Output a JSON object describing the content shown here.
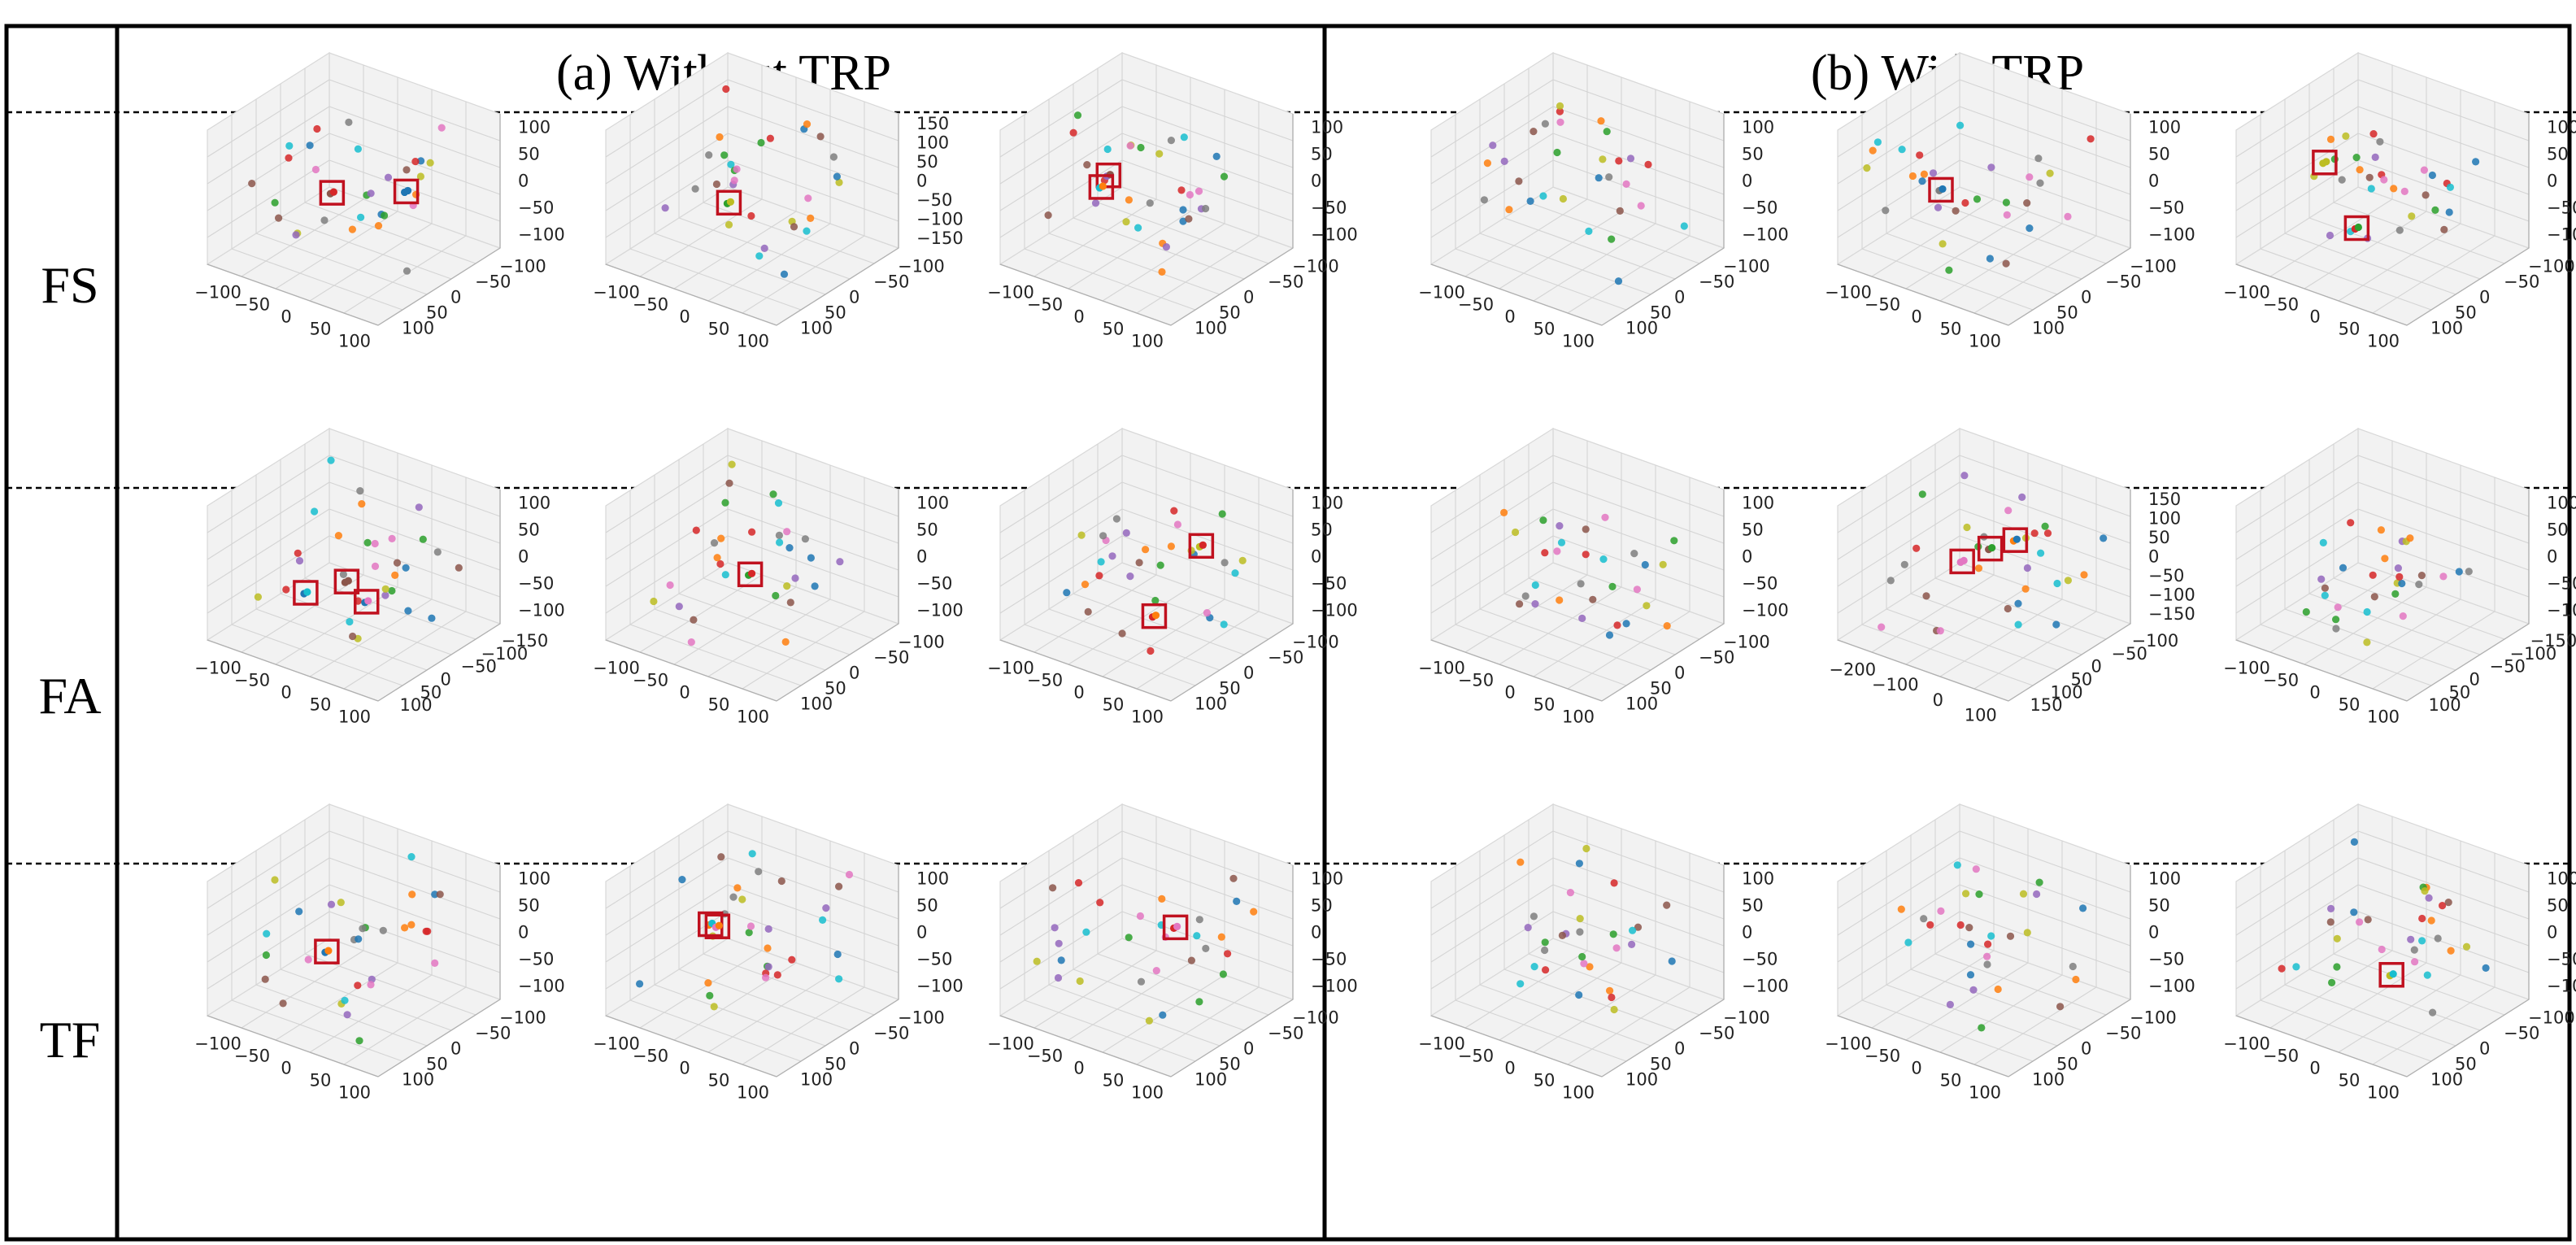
{
  "headers": {
    "left": "(a) Without TRP",
    "right": "(b) With TRP"
  },
  "rows": [
    "FS",
    "FA",
    "TF"
  ],
  "palette": [
    "#1f77b4",
    "#ff7f0e",
    "#2ca02c",
    "#d62728",
    "#9467bd",
    "#8c564b",
    "#e377c2",
    "#7f7f7f",
    "#bcbd22",
    "#17becf"
  ],
  "box_color": "#c0111f",
  "chart_data": {
    "type": "scatter",
    "projection": "3d",
    "grid": true,
    "panels": [
      {
        "row": "FS",
        "group": "(a) Without TRP",
        "x_ticks": [
          "−100",
          "−50",
          "0",
          "50",
          "100"
        ],
        "y_ticks": [
          "−100",
          "−50",
          "0",
          "50",
          "100"
        ],
        "z_ticks": [
          "100",
          "50",
          "0",
          "−50",
          "−100"
        ],
        "highlighted_clusters": 2
      },
      {
        "row": "FS",
        "group": "(a) Without TRP",
        "x_ticks": [
          "−100",
          "−50",
          "0",
          "50",
          "100"
        ],
        "y_ticks": [
          "−100",
          "−50",
          "0",
          "50",
          "100"
        ],
        "z_ticks": [
          "150",
          "100",
          "50",
          "0",
          "−50",
          "−100",
          "−150"
        ],
        "highlighted_clusters": 1
      },
      {
        "row": "FS",
        "group": "(a) Without TRP",
        "x_ticks": [
          "−100",
          "−50",
          "0",
          "50",
          "100"
        ],
        "y_ticks": [
          "−100",
          "−50",
          "0",
          "50",
          "100"
        ],
        "z_ticks": [
          "100",
          "50",
          "0",
          "−50",
          "−100"
        ],
        "highlighted_clusters": 2
      },
      {
        "row": "FS",
        "group": "(b) With TRP",
        "x_ticks": [
          "−100",
          "−50",
          "0",
          "50",
          "100"
        ],
        "y_ticks": [
          "−100",
          "−50",
          "0",
          "50",
          "100"
        ],
        "z_ticks": [
          "100",
          "50",
          "0",
          "−50",
          "−100"
        ],
        "highlighted_clusters": 0
      },
      {
        "row": "FS",
        "group": "(b) With TRP",
        "x_ticks": [
          "−100",
          "−50",
          "0",
          "50",
          "100"
        ],
        "y_ticks": [
          "−100",
          "−50",
          "0",
          "50",
          "100"
        ],
        "z_ticks": [
          "100",
          "50",
          "0",
          "−50",
          "−100"
        ],
        "highlighted_clusters": 1
      },
      {
        "row": "FS",
        "group": "(b) With TRP",
        "x_ticks": [
          "−100",
          "−50",
          "0",
          "50",
          "100"
        ],
        "y_ticks": [
          "−100",
          "−50",
          "0",
          "50",
          "100"
        ],
        "z_ticks": [
          "100",
          "50",
          "0",
          "−50",
          "−100"
        ],
        "highlighted_clusters": 2
      },
      {
        "row": "FA",
        "group": "(a) Without TRP",
        "x_ticks": [
          "−100",
          "−50",
          "0",
          "50",
          "100"
        ],
        "y_ticks": [
          "−150",
          "−100",
          "−50",
          "0",
          "50",
          "100"
        ],
        "z_ticks": [
          "100",
          "50",
          "0",
          "−50",
          "−100"
        ],
        "highlighted_clusters": 3
      },
      {
        "row": "FA",
        "group": "(a) Without TRP",
        "x_ticks": [
          "−100",
          "−50",
          "0",
          "50",
          "100"
        ],
        "y_ticks": [
          "−100",
          "−50",
          "0",
          "50",
          "100"
        ],
        "z_ticks": [
          "100",
          "50",
          "0",
          "−50",
          "−100"
        ],
        "highlighted_clusters": 1
      },
      {
        "row": "FA",
        "group": "(a) Without TRP",
        "x_ticks": [
          "−100",
          "−50",
          "0",
          "50",
          "100"
        ],
        "y_ticks": [
          "−100",
          "−50",
          "0",
          "50",
          "100"
        ],
        "z_ticks": [
          "100",
          "50",
          "0",
          "−50",
          "−100"
        ],
        "highlighted_clusters": 2
      },
      {
        "row": "FA",
        "group": "(b) With TRP",
        "x_ticks": [
          "−100",
          "−50",
          "0",
          "50",
          "100"
        ],
        "y_ticks": [
          "−100",
          "−50",
          "0",
          "50",
          "100"
        ],
        "z_ticks": [
          "100",
          "50",
          "0",
          "−50",
          "−100"
        ],
        "highlighted_clusters": 0
      },
      {
        "row": "FA",
        "group": "(b) With TRP",
        "x_ticks": [
          "−200",
          "−100",
          "0",
          "100"
        ],
        "y_ticks": [
          "−100",
          "−50",
          "0",
          "50",
          "100",
          "150"
        ],
        "z_ticks": [
          "150",
          "100",
          "50",
          "0",
          "−50",
          "−100",
          "−150"
        ],
        "highlighted_clusters": 3
      },
      {
        "row": "FA",
        "group": "(b) With TRP",
        "x_ticks": [
          "−100",
          "−50",
          "0",
          "50",
          "100"
        ],
        "y_ticks": [
          "−150",
          "−100",
          "−50",
          "0",
          "50",
          "100"
        ],
        "z_ticks": [
          "100",
          "50",
          "0",
          "−50",
          "−100"
        ],
        "highlighted_clusters": 0
      },
      {
        "row": "TF",
        "group": "(a) Without TRP",
        "x_ticks": [
          "−100",
          "−50",
          "0",
          "50",
          "100"
        ],
        "y_ticks": [
          "−100",
          "−50",
          "0",
          "50",
          "100"
        ],
        "z_ticks": [
          "100",
          "50",
          "0",
          "−50",
          "−100"
        ],
        "highlighted_clusters": 1
      },
      {
        "row": "TF",
        "group": "(a) Without TRP",
        "x_ticks": [
          "−100",
          "−50",
          "0",
          "50",
          "100"
        ],
        "y_ticks": [
          "−100",
          "−50",
          "0",
          "50",
          "100"
        ],
        "z_ticks": [
          "100",
          "50",
          "0",
          "−50",
          "−100"
        ],
        "highlighted_clusters": 2
      },
      {
        "row": "TF",
        "group": "(a) Without TRP",
        "x_ticks": [
          "−100",
          "−50",
          "0",
          "50",
          "100"
        ],
        "y_ticks": [
          "−100",
          "−50",
          "0",
          "50",
          "100"
        ],
        "z_ticks": [
          "100",
          "50",
          "0",
          "−50",
          "−100"
        ],
        "highlighted_clusters": 1
      },
      {
        "row": "TF",
        "group": "(b) With TRP",
        "x_ticks": [
          "−100",
          "−50",
          "0",
          "50",
          "100"
        ],
        "y_ticks": [
          "−100",
          "−50",
          "0",
          "50",
          "100"
        ],
        "z_ticks": [
          "100",
          "50",
          "0",
          "−50",
          "−100"
        ],
        "highlighted_clusters": 0
      },
      {
        "row": "TF",
        "group": "(b) With TRP",
        "x_ticks": [
          "−100",
          "−50",
          "0",
          "50",
          "100"
        ],
        "y_ticks": [
          "−100",
          "−50",
          "0",
          "50",
          "100"
        ],
        "z_ticks": [
          "100",
          "50",
          "0",
          "−50",
          "−100"
        ],
        "highlighted_clusters": 0
      },
      {
        "row": "TF",
        "group": "(b) With TRP",
        "x_ticks": [
          "−100",
          "−50",
          "0",
          "50",
          "100"
        ],
        "y_ticks": [
          "−100",
          "−50",
          "0",
          "50",
          "100"
        ],
        "z_ticks": [
          "100",
          "50",
          "0",
          "−50",
          "−100"
        ],
        "highlighted_clusters": 1
      }
    ]
  }
}
